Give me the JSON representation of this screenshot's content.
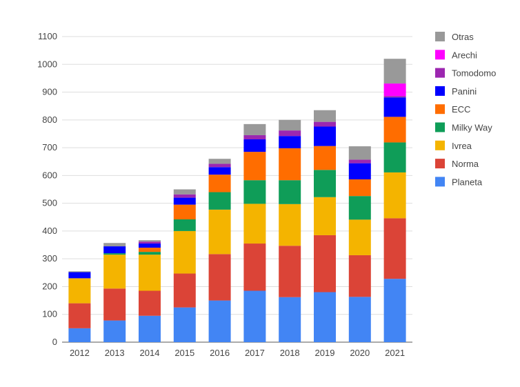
{
  "chart_data": {
    "type": "bar",
    "stacked": true,
    "title": "",
    "xlabel": "",
    "ylabel": "",
    "ylim": [
      0,
      1100
    ],
    "yticks": [
      0,
      100,
      200,
      300,
      400,
      500,
      600,
      700,
      800,
      900,
      1000,
      1100
    ],
    "grid": true,
    "legend_position": "right",
    "categories": [
      "2012",
      "2013",
      "2014",
      "2015",
      "2016",
      "2017",
      "2018",
      "2019",
      "2020",
      "2021"
    ],
    "series": [
      {
        "name": "Planeta",
        "color": "#4285f4",
        "values": [
          50,
          78,
          95,
          125,
          150,
          185,
          162,
          180,
          163,
          228
        ]
      },
      {
        "name": "Norma",
        "color": "#db4437",
        "values": [
          90,
          115,
          90,
          122,
          167,
          170,
          185,
          205,
          150,
          218
        ]
      },
      {
        "name": "Ivrea",
        "color": "#f4b400",
        "values": [
          90,
          122,
          130,
          153,
          160,
          143,
          150,
          137,
          128,
          165
        ]
      },
      {
        "name": "Milky Way",
        "color": "#0f9d58",
        "values": [
          0,
          5,
          10,
          42,
          63,
          85,
          86,
          98,
          85,
          108
        ]
      },
      {
        "name": "ECC",
        "color": "#ff6d00",
        "values": [
          0,
          0,
          15,
          53,
          63,
          102,
          115,
          86,
          60,
          92
        ]
      },
      {
        "name": "Panini",
        "color": "#0000ff",
        "values": [
          22,
          25,
          15,
          25,
          27,
          45,
          44,
          70,
          58,
          70
        ]
      },
      {
        "name": "Tomodomo",
        "color": "#9c27b0",
        "values": [
          0,
          0,
          7,
          12,
          12,
          15,
          20,
          17,
          13,
          5
        ]
      },
      {
        "name": "Arechi",
        "color": "#ff00ff",
        "values": [
          0,
          0,
          0,
          0,
          0,
          0,
          0,
          0,
          0,
          45
        ]
      },
      {
        "name": "Otras",
        "color": "#999999",
        "values": [
          3,
          12,
          5,
          18,
          18,
          40,
          38,
          42,
          48,
          89
        ]
      }
    ]
  }
}
